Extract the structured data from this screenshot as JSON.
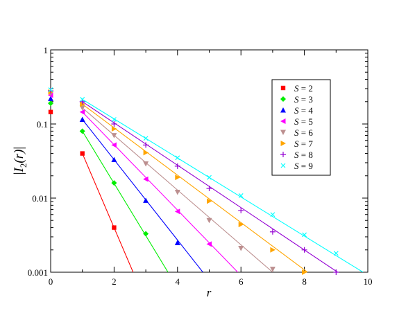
{
  "chart_data": {
    "type": "scatter",
    "title": "",
    "xlabel": "r",
    "ylabel": "|I_2(r)|",
    "ylabel_parts": {
      "pre": "|",
      "main": "I",
      "sub": "2",
      "arg": "(r)",
      "post": "|"
    },
    "xscale": "linear",
    "yscale": "log",
    "xlim": [
      0,
      10
    ],
    "ylim": [
      0.001,
      1
    ],
    "x_ticks": [
      0,
      2,
      4,
      6,
      8,
      10
    ],
    "x_tick_labels": [
      "0",
      "2",
      "4",
      "6",
      "8",
      "10"
    ],
    "y_ticks": [
      0.001,
      0.01,
      0.1,
      1
    ],
    "y_tick_labels": [
      "0.001",
      "0.01",
      "0.1",
      "1"
    ],
    "grid": false,
    "legend_position": "upper right",
    "series": [
      {
        "name": "S = 2",
        "label_var": "S",
        "label_eq": " = ",
        "label_val": "2",
        "color": "#ff0000",
        "marker": "square",
        "points": [
          [
            0,
            0.145
          ],
          [
            1,
            0.04
          ],
          [
            2,
            0.004
          ]
        ],
        "fit": [
          [
            1,
            0.04
          ],
          [
            2.6,
            0.001
          ]
        ]
      },
      {
        "name": "S = 3",
        "label_var": "S",
        "label_eq": " = ",
        "label_val": "3",
        "color": "#00ee00",
        "marker": "diamond",
        "points": [
          [
            0,
            0.19
          ],
          [
            1,
            0.08
          ],
          [
            2,
            0.016
          ],
          [
            3,
            0.0033
          ]
        ],
        "fit": [
          [
            1,
            0.08
          ],
          [
            3.7,
            0.001
          ]
        ]
      },
      {
        "name": "S = 4",
        "label_var": "S",
        "label_eq": " = ",
        "label_val": "4",
        "color": "#0000ff",
        "marker": "triangle-up",
        "points": [
          [
            0,
            0.22
          ],
          [
            1,
            0.115
          ],
          [
            2,
            0.033
          ],
          [
            3,
            0.0093
          ],
          [
            4,
            0.0025
          ]
        ],
        "fit": [
          [
            1,
            0.115
          ],
          [
            4.8,
            0.001
          ]
        ]
      },
      {
        "name": "S = 5",
        "label_var": "S",
        "label_eq": " = ",
        "label_val": "5",
        "color": "#ff00ff",
        "marker": "triangle-left",
        "points": [
          [
            0,
            0.245
          ],
          [
            1,
            0.145
          ],
          [
            2,
            0.052
          ],
          [
            3,
            0.018
          ],
          [
            4,
            0.0066
          ],
          [
            5,
            0.0024
          ]
        ],
        "fit": [
          [
            1,
            0.145
          ],
          [
            5.9,
            0.001
          ]
        ]
      },
      {
        "name": "S = 6",
        "label_var": "S",
        "label_eq": " = ",
        "label_val": "6",
        "color": "#bc8f8f",
        "marker": "triangle-down",
        "points": [
          [
            0,
            0.26
          ],
          [
            1,
            0.165
          ],
          [
            2,
            0.07
          ],
          [
            3,
            0.029
          ],
          [
            4,
            0.012
          ],
          [
            5,
            0.005
          ],
          [
            6,
            0.0021
          ],
          [
            7,
            0.0011
          ]
        ],
        "fit": [
          [
            1,
            0.165
          ],
          [
            7,
            0.001
          ]
        ]
      },
      {
        "name": "S = 7",
        "label_var": "S",
        "label_eq": " = ",
        "label_val": "7",
        "color": "#ffa500",
        "marker": "triangle-right",
        "points": [
          [
            0,
            0.27
          ],
          [
            1,
            0.185
          ],
          [
            2,
            0.086
          ],
          [
            3,
            0.041
          ],
          [
            4,
            0.019
          ],
          [
            5,
            0.0091
          ],
          [
            6,
            0.0044
          ],
          [
            7,
            0.002
          ],
          [
            8,
            0.001
          ]
        ],
        "fit": [
          [
            1,
            0.185
          ],
          [
            8.1,
            0.001
          ]
        ]
      },
      {
        "name": "S = 8",
        "label_var": "S",
        "label_eq": " = ",
        "label_val": "8",
        "color": "#9400d3",
        "marker": "plus",
        "points": [
          [
            0,
            0.28
          ],
          [
            1,
            0.2
          ],
          [
            2,
            0.1
          ],
          [
            3,
            0.052
          ],
          [
            4,
            0.027
          ],
          [
            5,
            0.0135
          ],
          [
            6,
            0.0068
          ],
          [
            7,
            0.0035
          ],
          [
            8,
            0.002
          ],
          [
            9,
            0.001
          ]
        ],
        "fit": [
          [
            1,
            0.2
          ],
          [
            9.05,
            0.001
          ]
        ]
      },
      {
        "name": "S = 9",
        "label_var": "S",
        "label_eq": " = ",
        "label_val": "9",
        "color": "#00ffff",
        "marker": "cross",
        "points": [
          [
            0,
            0.29
          ],
          [
            1,
            0.215
          ],
          [
            2,
            0.115
          ],
          [
            3,
            0.064
          ],
          [
            4,
            0.035
          ],
          [
            5,
            0.019
          ],
          [
            6,
            0.0108
          ],
          [
            7,
            0.006
          ],
          [
            8,
            0.0032
          ],
          [
            9,
            0.0018
          ]
        ],
        "fit": [
          [
            1,
            0.215
          ],
          [
            9.85,
            0.001
          ]
        ]
      }
    ]
  }
}
